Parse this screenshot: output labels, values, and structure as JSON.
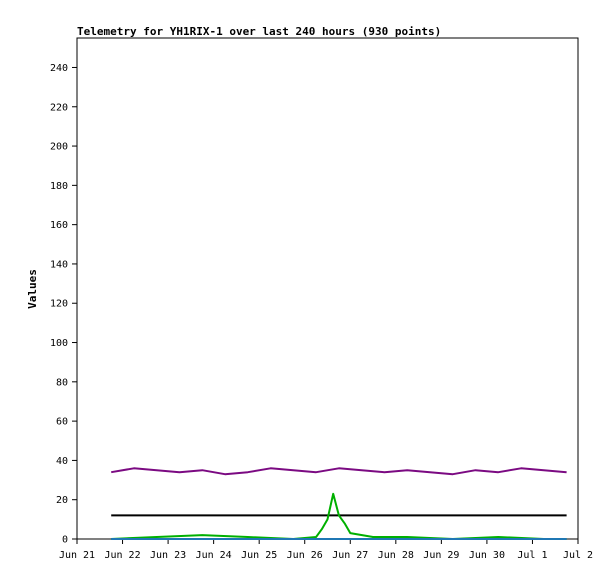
{
  "chart_data": {
    "type": "line",
    "title": "Telemetry for YH1RIX-1 over last 240 hours (930 points)",
    "xlabel": "",
    "ylabel": "Values",
    "ylim": [
      0,
      255
    ],
    "yticks": [
      0,
      20,
      40,
      60,
      80,
      100,
      120,
      140,
      160,
      180,
      200,
      220,
      240
    ],
    "xlim": [
      "2024-06-21",
      "2024-07-02"
    ],
    "xticks": [
      {
        "date": "2024-06-21",
        "label": "Jun 21"
      },
      {
        "date": "2024-06-22",
        "label": "Jun 22"
      },
      {
        "date": "2024-06-23",
        "label": "Jun 23"
      },
      {
        "date": "2024-06-24",
        "label": "Jun 24"
      },
      {
        "date": "2024-06-25",
        "label": "Jun 25"
      },
      {
        "date": "2024-06-26",
        "label": "Jun 26"
      },
      {
        "date": "2024-06-27",
        "label": "Jun 27"
      },
      {
        "date": "2024-06-28",
        "label": "Jun 28"
      },
      {
        "date": "2024-06-29",
        "label": "Jun 29"
      },
      {
        "date": "2024-06-30",
        "label": "Jun 30"
      },
      {
        "date": "2024-07-01",
        "label": "Jul 1"
      },
      {
        "date": "2024-07-02",
        "label": "Jul 2"
      }
    ],
    "grid": false,
    "series": [
      {
        "color": "#7b0a82",
        "x": [
          "2024-06-21 18:00",
          "2024-06-22 06:00",
          "2024-06-22 18:00",
          "2024-06-23 06:00",
          "2024-06-23 18:00",
          "2024-06-24 06:00",
          "2024-06-24 18:00",
          "2024-06-25 06:00",
          "2024-06-25 18:00",
          "2024-06-26 06:00",
          "2024-06-26 18:00",
          "2024-06-27 06:00",
          "2024-06-27 18:00",
          "2024-06-28 06:00",
          "2024-06-28 18:00",
          "2024-06-29 06:00",
          "2024-06-29 18:00",
          "2024-06-30 06:00",
          "2024-06-30 18:00",
          "2024-07-01 06:00",
          "2024-07-01 18:00"
        ],
        "y": [
          34,
          36,
          35,
          34,
          35,
          33,
          34,
          36,
          35,
          34,
          36,
          35,
          34,
          35,
          34,
          33,
          35,
          34,
          36,
          35,
          34
        ]
      },
      {
        "color": "#000000",
        "x": [
          "2024-06-21 18:00",
          "2024-07-01 18:00"
        ],
        "y": [
          12,
          12
        ]
      },
      {
        "color": "#00b000",
        "x": [
          "2024-06-21 18:00",
          "2024-06-22 18:00",
          "2024-06-23 18:00",
          "2024-06-24 18:00",
          "2024-06-25 18:00",
          "2024-06-26 06:00",
          "2024-06-26 09:00",
          "2024-06-26 12:00",
          "2024-06-26 15:00",
          "2024-06-26 18:00",
          "2024-06-26 21:00",
          "2024-06-27 00:00",
          "2024-06-27 12:00",
          "2024-06-28 06:00",
          "2024-06-29 06:00",
          "2024-06-30 06:00",
          "2024-07-01 06:00",
          "2024-07-01 18:00"
        ],
        "y": [
          0,
          1,
          2,
          1,
          0,
          1,
          5,
          10,
          23,
          12,
          8,
          3,
          1,
          1,
          0,
          1,
          0,
          0
        ]
      },
      {
        "color": "#1f77b4",
        "x": [
          "2024-06-21 18:00",
          "2024-07-01 18:00"
        ],
        "y": [
          0,
          0
        ]
      }
    ]
  }
}
